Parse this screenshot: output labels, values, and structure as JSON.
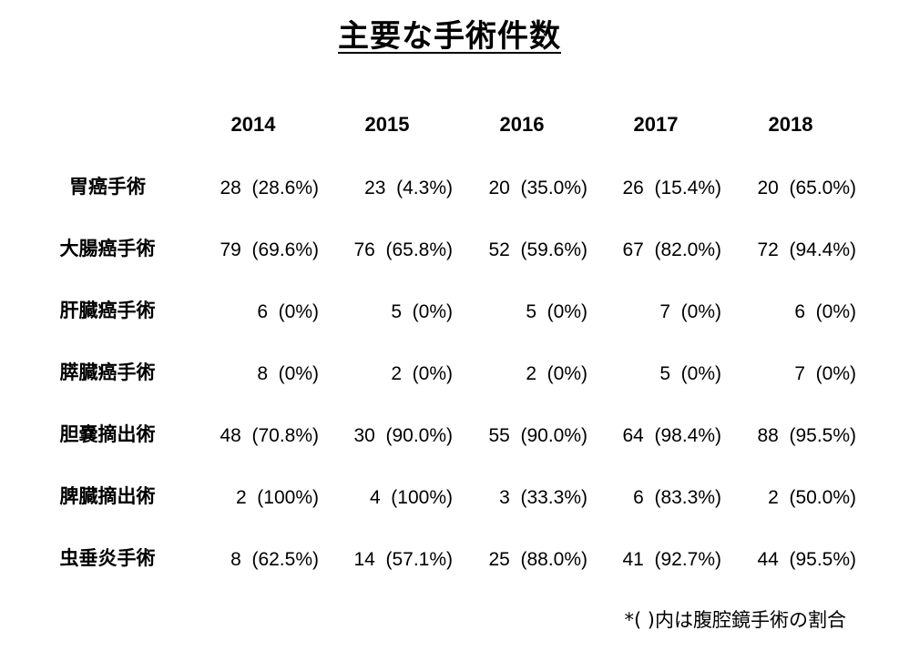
{
  "title": "主要な手術件数",
  "years": [
    "2014",
    "2015",
    "2016",
    "2017",
    "2018"
  ],
  "rows": [
    {
      "label": "胃癌手術",
      "values": [
        "28  (28.6%)",
        "23  (4.3%)",
        "20  (35.0%)",
        "26  (15.4%)",
        "20  (65.0%)"
      ]
    },
    {
      "label": "大腸癌手術",
      "values": [
        "79  (69.6%)",
        "76  (65.8%)",
        "52  (59.6%)",
        "67  (82.0%)",
        "72  (94.4%)"
      ]
    },
    {
      "label": "肝臓癌手術",
      "values": [
        "6  (0%)",
        "5  (0%)",
        "5  (0%)",
        "7  (0%)",
        "6  (0%)"
      ]
    },
    {
      "label": "膵臓癌手術",
      "values": [
        "8  (0%)",
        "2  (0%)",
        "2  (0%)",
        "5  (0%)",
        "7  (0%)"
      ]
    },
    {
      "label": "胆嚢摘出術",
      "values": [
        "48  (70.8%)",
        "30  (90.0%)",
        "55  (90.0%)",
        "64  (98.4%)",
        "88  (95.5%)"
      ]
    },
    {
      "label": "脾臓摘出術",
      "values": [
        "2  (100%)",
        "4  (100%)",
        "3  (33.3%)",
        "6  (83.3%)",
        "2  (50.0%)"
      ]
    },
    {
      "label": "虫垂炎手術",
      "values": [
        "8  (62.5%)",
        "14  (57.1%)",
        "25  (88.0%)",
        "41  (92.7%)",
        "44  (95.5%)"
      ]
    }
  ],
  "footnote": "*( )内は腹腔鏡手術の割合"
}
